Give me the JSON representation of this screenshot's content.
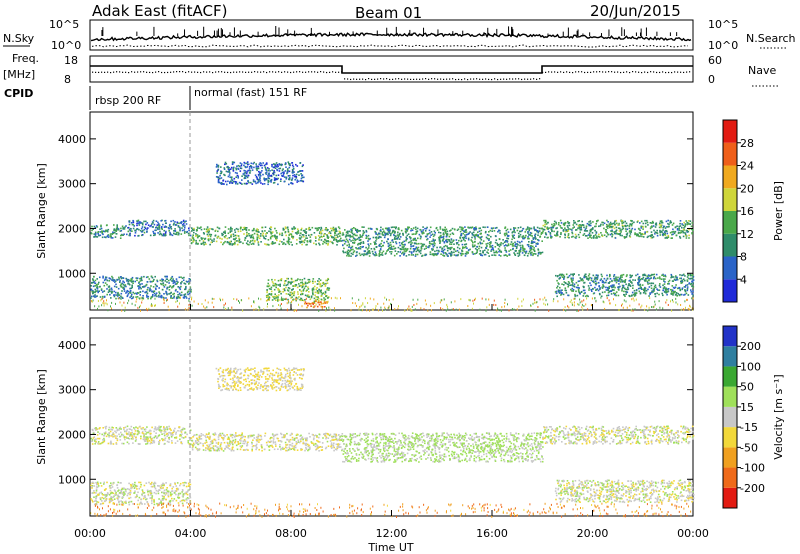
{
  "header": {
    "station": "Adak East (fitACF)",
    "beam": "Beam 01",
    "date": "20/Jun/2015"
  },
  "strip_labels": {
    "nsky": "N.Sky",
    "nsky_scale": [
      "10^5",
      "10^0"
    ],
    "nsearch": "N.Search",
    "freq_top": "Freq.",
    "freq_unit": "[MHz]",
    "freq_ticks": [
      "18",
      "8"
    ],
    "nave": "Nave",
    "nave_ticks": [
      "60",
      "0"
    ],
    "cpid": "CPID"
  },
  "cpid_modes": [
    {
      "label": "rbsp 200 RF",
      "start_hour": 0,
      "end_hour": 4
    },
    {
      "label": "normal (fast) 151 RF",
      "start_hour": 4,
      "end_hour": 24
    }
  ],
  "axes": {
    "ylabel": "Slant Range [km]",
    "xlabel": "Time UT",
    "y_ticks": [
      "1000",
      "2000",
      "3000",
      "4000"
    ],
    "x_ticks": [
      "00:00",
      "04:00",
      "08:00",
      "12:00",
      "16:00",
      "20:00",
      "00:00"
    ]
  },
  "power_colorbar": {
    "label": "Power [dB]",
    "ticks": [
      "4",
      "8",
      "12",
      "16",
      "20",
      "24",
      "28"
    ],
    "colors": [
      "#1f2ad8",
      "#2a64c8",
      "#2f8c6a",
      "#4aa84a",
      "#cfd63a",
      "#f0a91f",
      "#ef5f1a",
      "#e21b12"
    ]
  },
  "velocity_colorbar": {
    "label": "Velocity [m s⁻¹]",
    "ticks": [
      "200",
      "100",
      "50",
      "15",
      "-15",
      "-50",
      "-100",
      "-200"
    ],
    "colors": [
      "#2233c8",
      "#2f7fa0",
      "#3aa832",
      "#9fe05a",
      "#c8c8c8",
      "#f2d83a",
      "#f0a020",
      "#ef6a1a",
      "#e21b12"
    ]
  },
  "chart_data": [
    {
      "type": "heatmap",
      "title": "Power [dB]",
      "xlabel": "Time UT",
      "ylabel": "Slant Range [km]",
      "xlim_hours": [
        0,
        24
      ],
      "ylim_km": [
        180,
        4600
      ],
      "value_range": [
        0,
        30
      ],
      "echo_bands": [
        {
          "t": [
            0,
            1.5
          ],
          "range_km": [
            1800,
            2100
          ],
          "value": 10
        },
        {
          "t": [
            1.5,
            4
          ],
          "range_km": [
            1850,
            2200
          ],
          "value": 8
        },
        {
          "t": [
            4,
            10
          ],
          "range_km": [
            1650,
            2050
          ],
          "value": 13
        },
        {
          "t": [
            10,
            18
          ],
          "range_km": [
            1400,
            2050
          ],
          "value": 11
        },
        {
          "t": [
            18,
            24
          ],
          "range_km": [
            1800,
            2200
          ],
          "value": 12
        },
        {
          "t": [
            0,
            4
          ],
          "range_km": [
            450,
            950
          ],
          "value": 9
        },
        {
          "t": [
            5,
            8.5
          ],
          "range_km": [
            3000,
            3500
          ],
          "value": 7
        },
        {
          "t": [
            7,
            9.5
          ],
          "range_km": [
            400,
            900
          ],
          "value": 15
        },
        {
          "t": [
            8.5,
            9.5
          ],
          "range_km": [
            250,
            400
          ],
          "value": 24
        },
        {
          "t": [
            18.5,
            24
          ],
          "range_km": [
            500,
            1000
          ],
          "value": 10
        }
      ]
    },
    {
      "type": "heatmap",
      "title": "Velocity [m s⁻¹]",
      "xlabel": "Time UT",
      "ylabel": "Slant Range [km]",
      "xlim_hours": [
        0,
        24
      ],
      "ylim_km": [
        180,
        4600
      ],
      "value_range": [
        -200,
        200
      ],
      "echo_bands": [
        {
          "t": [
            0,
            4
          ],
          "range_km": [
            1800,
            2200
          ],
          "value": 0
        },
        {
          "t": [
            4,
            10
          ],
          "range_km": [
            1650,
            2050
          ],
          "value": -5
        },
        {
          "t": [
            10,
            18
          ],
          "range_km": [
            1400,
            2050
          ],
          "value": 20
        },
        {
          "t": [
            18,
            24
          ],
          "range_km": [
            1800,
            2200
          ],
          "value": 0
        },
        {
          "t": [
            0,
            4
          ],
          "range_km": [
            450,
            950
          ],
          "value": 0
        },
        {
          "t": [
            5,
            8.5
          ],
          "range_km": [
            3000,
            3500
          ],
          "value": -20
        },
        {
          "t": [
            18.5,
            24
          ],
          "range_km": [
            500,
            1000
          ],
          "value": 0
        }
      ]
    }
  ]
}
